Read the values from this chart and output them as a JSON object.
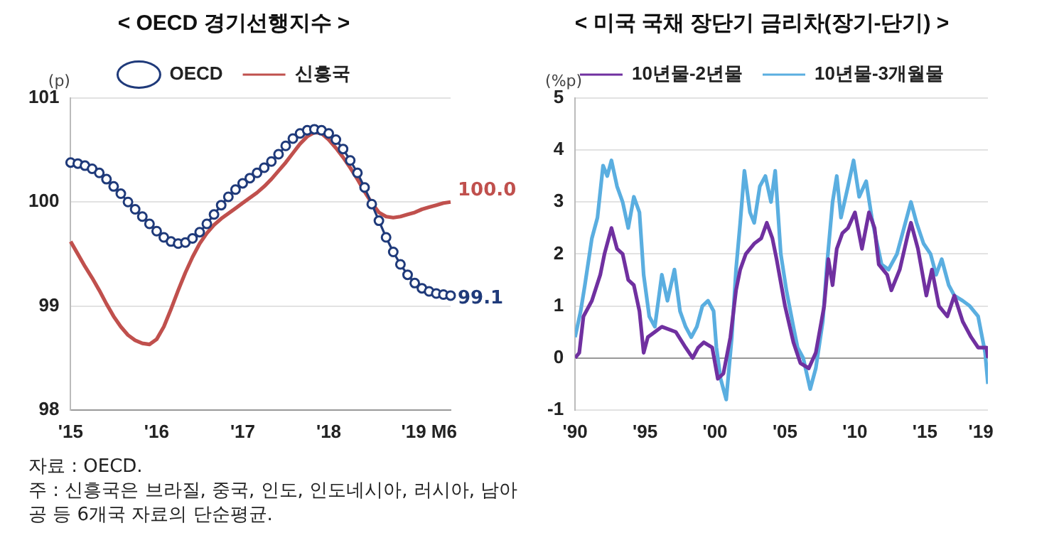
{
  "chart_data": [
    {
      "type": "line",
      "title": "< OECD 경기선행지수 >",
      "ylabel": "(p)",
      "categories": [
        "'15",
        null,
        null,
        null,
        null,
        null,
        null,
        null,
        null,
        null,
        null,
        null,
        "'16",
        null,
        null,
        null,
        null,
        null,
        null,
        null,
        null,
        null,
        null,
        null,
        "'17",
        null,
        null,
        null,
        null,
        null,
        null,
        null,
        null,
        null,
        null,
        null,
        "'18",
        null,
        null,
        null,
        null,
        null,
        null,
        null,
        null,
        null,
        null,
        null,
        null,
        null,
        "'19 M6",
        null,
        null,
        null
      ],
      "series": [
        {
          "name": "OECD",
          "color": "#1f3a7a",
          "marker": "circle",
          "values": [
            100.38,
            100.37,
            100.35,
            100.32,
            100.28,
            100.22,
            100.15,
            100.08,
            100.0,
            99.93,
            99.86,
            99.79,
            99.72,
            99.66,
            99.62,
            99.6,
            99.61,
            99.65,
            99.71,
            99.79,
            99.88,
            99.97,
            100.05,
            100.12,
            100.18,
            100.23,
            100.28,
            100.33,
            100.39,
            100.46,
            100.54,
            100.61,
            100.66,
            100.69,
            100.7,
            100.69,
            100.66,
            100.6,
            100.51,
            100.4,
            100.28,
            100.14,
            99.98,
            99.82,
            99.66,
            99.52,
            99.4,
            99.3,
            99.22,
            99.17,
            99.14,
            99.12,
            99.11,
            99.1
          ],
          "value_labels": [
            null,
            null,
            null,
            null,
            null,
            null,
            null,
            null,
            null,
            null,
            null,
            null,
            null,
            null,
            null,
            null,
            null,
            null,
            null,
            null,
            null,
            null,
            null,
            null,
            null,
            null,
            null,
            null,
            null,
            null,
            null,
            null,
            null,
            null,
            null,
            null,
            null,
            null,
            null,
            null,
            null,
            null,
            null,
            null,
            null,
            null,
            null,
            null,
            null,
            null,
            null,
            null,
            null,
            "99.1"
          ]
        },
        {
          "name": "신흥국",
          "color": "#c0504d",
          "marker": "none",
          "values": [
            99.62,
            99.5,
            99.38,
            99.27,
            99.15,
            99.02,
            98.9,
            98.8,
            98.72,
            98.67,
            98.64,
            98.63,
            98.68,
            98.8,
            98.97,
            99.15,
            99.32,
            99.47,
            99.6,
            99.7,
            99.78,
            99.84,
            99.89,
            99.94,
            99.99,
            100.04,
            100.09,
            100.15,
            100.22,
            100.3,
            100.38,
            100.47,
            100.56,
            100.63,
            100.67,
            100.66,
            100.6,
            100.52,
            100.43,
            100.33,
            100.22,
            100.1,
            99.99,
            99.9,
            99.86,
            99.85,
            99.86,
            99.88,
            99.9,
            99.93,
            99.95,
            99.97,
            99.99,
            100.0
          ],
          "value_labels": [
            null,
            null,
            null,
            null,
            null,
            null,
            null,
            null,
            null,
            null,
            null,
            null,
            null,
            null,
            null,
            null,
            null,
            null,
            null,
            null,
            null,
            null,
            null,
            null,
            null,
            null,
            null,
            null,
            null,
            null,
            null,
            null,
            null,
            null,
            null,
            null,
            null,
            null,
            null,
            null,
            null,
            null,
            null,
            null,
            null,
            null,
            null,
            null,
            null,
            null,
            null,
            null,
            null,
            "100.0"
          ]
        }
      ],
      "ylim": [
        98,
        101
      ],
      "yticks": [
        98,
        99,
        100,
        101
      ],
      "grid": "y",
      "legend": "top",
      "annotations": [
        "자료 : OECD.",
        "주 : 신흥국은 브라질, 중국, 인도, 인도네시아, 러시아, 남아공 등 6개국 자료의 단순평균."
      ]
    },
    {
      "type": "line",
      "title": "< 미국 국채 장단기 금리차(장기-단기) >",
      "ylabel": "(%p)",
      "series": [
        {
          "name": "10년물-2년물",
          "color": "#7030a0",
          "x": [
            1990.0,
            1990.3,
            1990.6,
            1991.2,
            1991.8,
            1992.1,
            1992.6,
            1993.0,
            1993.4,
            1993.8,
            1994.2,
            1994.6,
            1994.9,
            1995.2,
            1995.7,
            1996.2,
            1997.2,
            1997.9,
            1998.4,
            1998.8,
            1999.2,
            1999.8,
            2000.2,
            2000.6,
            2001.1,
            2001.5,
            2001.8,
            2002.2,
            2002.8,
            2003.3,
            2003.7,
            2004.1,
            2004.4,
            2005.0,
            2005.6,
            2006.1,
            2006.7,
            2007.2,
            2007.8,
            2008.1,
            2008.4,
            2008.7,
            2009.1,
            2009.5,
            2010.0,
            2010.5,
            2011.0,
            2011.4,
            2011.7,
            2012.3,
            2012.6,
            2013.2,
            2013.8,
            2014.0,
            2014.5,
            2015.1,
            2015.5,
            2016.0,
            2016.6,
            2017.1,
            2017.7,
            2018.3,
            2018.8,
            2019.4,
            2019.5
          ],
          "values": [
            0.0,
            0.1,
            0.8,
            1.1,
            1.6,
            2.0,
            2.5,
            2.1,
            2.0,
            1.5,
            1.4,
            0.9,
            0.1,
            0.4,
            0.5,
            0.6,
            0.5,
            0.2,
            0.0,
            0.2,
            0.3,
            0.2,
            -0.4,
            -0.3,
            0.4,
            1.3,
            1.7,
            2.0,
            2.2,
            2.3,
            2.6,
            2.3,
            1.9,
            1.0,
            0.3,
            -0.1,
            -0.2,
            0.1,
            1.0,
            1.9,
            1.4,
            2.1,
            2.4,
            2.5,
            2.8,
            2.1,
            2.8,
            2.5,
            1.8,
            1.6,
            1.3,
            1.7,
            2.4,
            2.6,
            2.1,
            1.2,
            1.7,
            1.0,
            0.8,
            1.2,
            0.7,
            0.4,
            0.2,
            0.2,
            0.0
          ]
        },
        {
          "name": "10년물-3개월물",
          "color": "#5aaee0",
          "x": [
            1990.0,
            1990.4,
            1990.7,
            1991.2,
            1991.6,
            1992.0,
            1992.3,
            1992.6,
            1993.0,
            1993.4,
            1993.8,
            1994.2,
            1994.6,
            1994.9,
            1995.3,
            1995.7,
            1996.2,
            1996.6,
            1997.1,
            1997.5,
            1997.9,
            1998.3,
            1998.7,
            1999.1,
            1999.5,
            1999.9,
            2000.1,
            2000.4,
            2000.8,
            2001.2,
            2001.5,
            2001.8,
            2002.1,
            2002.5,
            2002.8,
            2003.2,
            2003.6,
            2004.0,
            2004.3,
            2004.7,
            2005.1,
            2005.6,
            2005.9,
            2006.3,
            2006.8,
            2007.2,
            2007.7,
            2008.0,
            2008.4,
            2008.7,
            2009.0,
            2009.5,
            2009.9,
            2010.3,
            2010.8,
            2011.2,
            2011.5,
            2011.9,
            2012.4,
            2013.0,
            2013.5,
            2014.0,
            2014.4,
            2014.9,
            2015.4,
            2015.8,
            2016.2,
            2016.7,
            2017.1,
            2017.7,
            2018.2,
            2018.8,
            2019.3,
            2019.5
          ],
          "values": [
            0.4,
            0.9,
            1.4,
            2.3,
            2.7,
            3.7,
            3.5,
            3.8,
            3.3,
            3.0,
            2.5,
            3.1,
            2.8,
            1.6,
            0.8,
            0.6,
            1.6,
            1.1,
            1.7,
            0.9,
            0.6,
            0.4,
            0.6,
            1.0,
            1.1,
            0.9,
            0.2,
            -0.4,
            -0.8,
            0.4,
            1.7,
            2.6,
            3.6,
            2.8,
            2.6,
            3.3,
            3.5,
            3.0,
            3.6,
            2.0,
            1.3,
            0.6,
            0.2,
            0.0,
            -0.6,
            -0.2,
            0.7,
            1.8,
            3.0,
            3.5,
            2.7,
            3.3,
            3.8,
            3.1,
            3.4,
            2.7,
            2.3,
            1.8,
            1.7,
            2.0,
            2.5,
            3.0,
            2.6,
            2.2,
            2.0,
            1.6,
            1.9,
            1.4,
            1.2,
            1.1,
            1.0,
            0.8,
            0.1,
            -0.5
          ]
        }
      ],
      "xlim": [
        1990,
        2019.5
      ],
      "xticks": [
        {
          "value": 1990,
          "label": "'90"
        },
        {
          "value": 1995,
          "label": "'95"
        },
        {
          "value": 2000,
          "label": "'00"
        },
        {
          "value": 2005,
          "label": "'05"
        },
        {
          "value": 2010,
          "label": "'10"
        },
        {
          "value": 2015,
          "label": "'15"
        },
        {
          "value": 2019,
          "label": "'19"
        }
      ],
      "ylim": [
        -1,
        5
      ],
      "yticks": [
        -1,
        0,
        1,
        2,
        3,
        4,
        5
      ],
      "grid": "y",
      "legend": "top"
    }
  ]
}
